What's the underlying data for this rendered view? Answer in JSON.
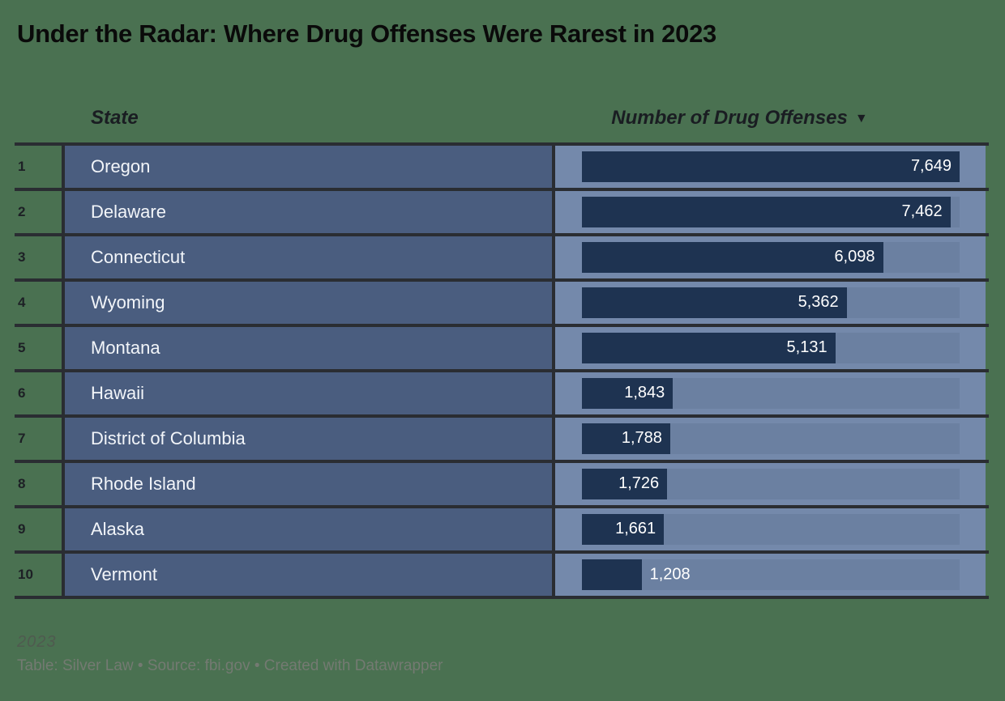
{
  "title": "Under the Radar: Where Drug Offenses Were Rarest in 2023",
  "columns": {
    "state_label": "State",
    "value_label": "Number of Drug Offenses",
    "sort_indicator": "▼"
  },
  "rows": [
    {
      "rank": "1",
      "state": "Oregon",
      "value": 7649,
      "value_label": "7,649"
    },
    {
      "rank": "2",
      "state": "Delaware",
      "value": 7462,
      "value_label": "7,462"
    },
    {
      "rank": "3",
      "state": "Connecticut",
      "value": 6098,
      "value_label": "6,098"
    },
    {
      "rank": "4",
      "state": "Wyoming",
      "value": 5362,
      "value_label": "5,362"
    },
    {
      "rank": "5",
      "state": "Montana",
      "value": 5131,
      "value_label": "5,131"
    },
    {
      "rank": "6",
      "state": "Hawaii",
      "value": 1843,
      "value_label": "1,843"
    },
    {
      "rank": "7",
      "state": "District of Columbia",
      "value": 1788,
      "value_label": "1,788"
    },
    {
      "rank": "8",
      "state": "Rhode Island",
      "value": 1726,
      "value_label": "1,726"
    },
    {
      "rank": "9",
      "state": "Alaska",
      "value": 1661,
      "value_label": "1,661"
    },
    {
      "rank": "10",
      "state": "Vermont",
      "value": 1208,
      "value_label": "1,208"
    }
  ],
  "chart_data": {
    "type": "bar",
    "title": "Under the Radar: Where Drug Offenses Were Rarest in 2023",
    "categories": [
      "Oregon",
      "Delaware",
      "Connecticut",
      "Wyoming",
      "Montana",
      "Hawaii",
      "District of Columbia",
      "Rhode Island",
      "Alaska",
      "Vermont"
    ],
    "values": [
      7649,
      7462,
      6098,
      5362,
      5131,
      1843,
      1788,
      1726,
      1661,
      1208
    ],
    "xlabel": "Number of Drug Offenses",
    "ylabel": "State",
    "xlim": [
      0,
      7649
    ],
    "sort": "descending",
    "grid": false,
    "legend_position": "none"
  },
  "footer": {
    "note": "2023",
    "attribution": "Table: Silver Law • Source: fbi.gov • Created with Datawrapper"
  },
  "colors": {
    "page_bg": "#4a7151",
    "row_bg": "#4a5d7f",
    "bar_cell_bg": "#7489ab",
    "track_bg": "#6b80a1",
    "bar": "#1e3351",
    "border": "#2a2d32",
    "rank_text": "#1d2025",
    "state_text": "#f2f5f9",
    "value_text": "#ffffff",
    "title_text": "#0a0a0a",
    "header_text": "#1a1d22",
    "note_text": "#51564f",
    "attribution_text": "#747a72"
  }
}
